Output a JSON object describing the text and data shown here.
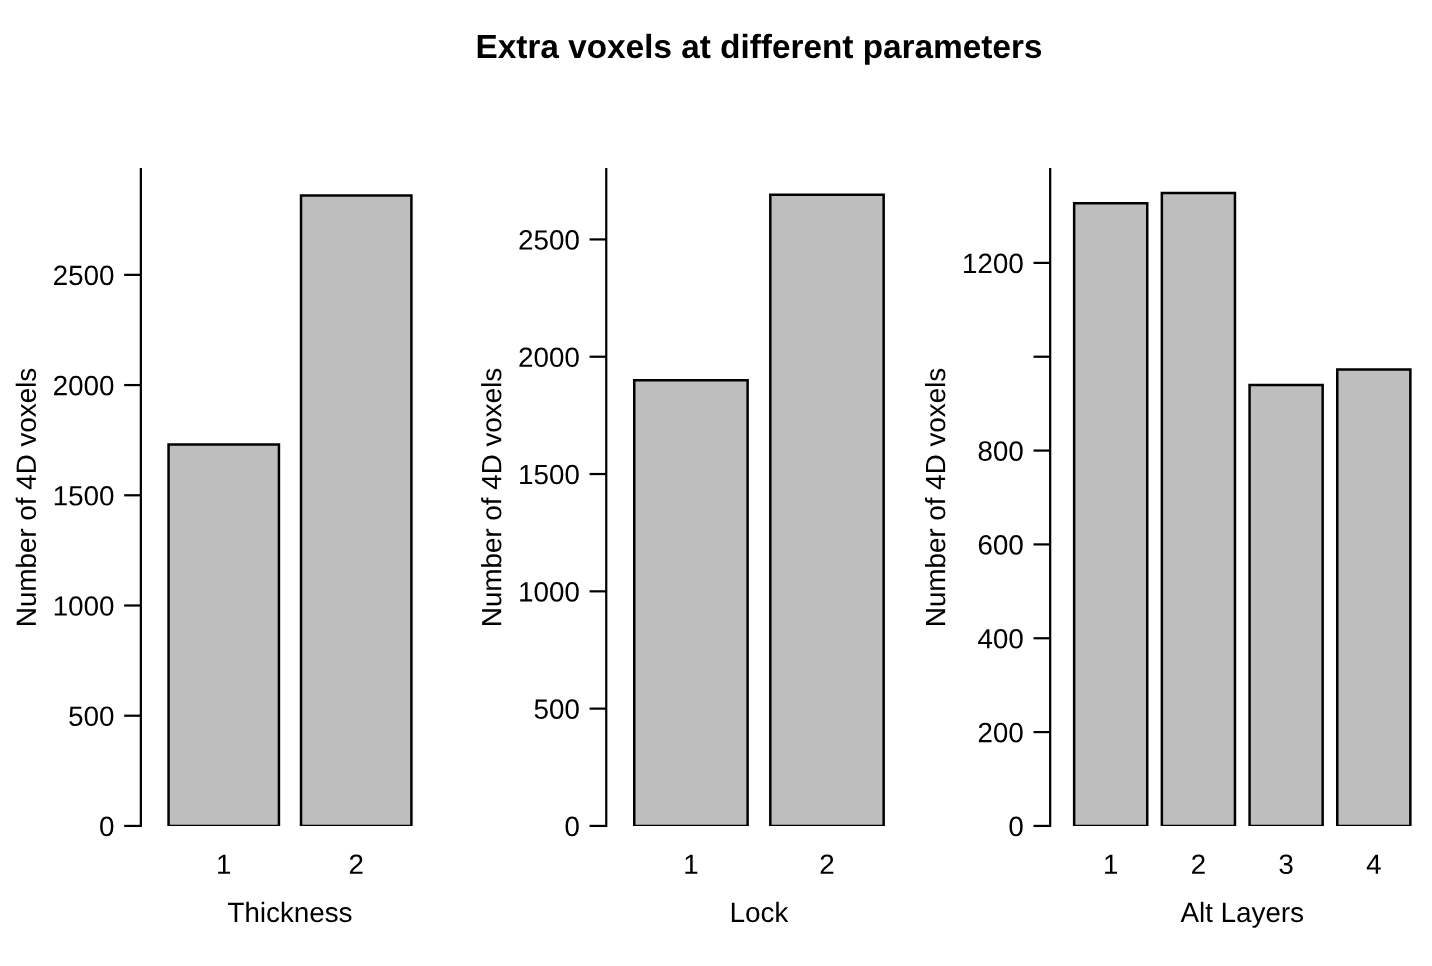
{
  "chart_data": [
    {
      "type": "bar",
      "xlabel": "Thickness",
      "ylabel": "Number of 4D voxels",
      "categories": [
        "1",
        "2"
      ],
      "values": [
        1730,
        2860
      ],
      "color": "#bebebe",
      "ylim": [
        0,
        2980
      ],
      "yticks": [
        0,
        500,
        1000,
        1500,
        2000,
        2500
      ],
      "grid": false,
      "legend": false
    },
    {
      "type": "bar",
      "title": "Extra voxels at different parameters",
      "xlabel": "Lock",
      "ylabel": "Number of 4D voxels",
      "categories": [
        "1",
        "2"
      ],
      "values": [
        1900,
        2690
      ],
      "color": "#bebebe",
      "ylim": [
        0,
        2800
      ],
      "yticks": [
        0,
        500,
        1000,
        1500,
        2000,
        2500
      ],
      "grid": false,
      "legend": false
    },
    {
      "type": "bar",
      "xlabel": "Alt Layers",
      "ylabel": "Number of 4D voxels",
      "categories": [
        "1",
        "2",
        "3",
        "4"
      ],
      "values": [
        1327,
        1349,
        940,
        973
      ],
      "color": "#bebebe",
      "ylim": [
        0,
        1400
      ],
      "yticks": [
        0,
        200,
        400,
        600,
        800,
        {
          "value": 1000,
          "label": null
        },
        1200
      ],
      "grid": false,
      "legend": false
    }
  ]
}
